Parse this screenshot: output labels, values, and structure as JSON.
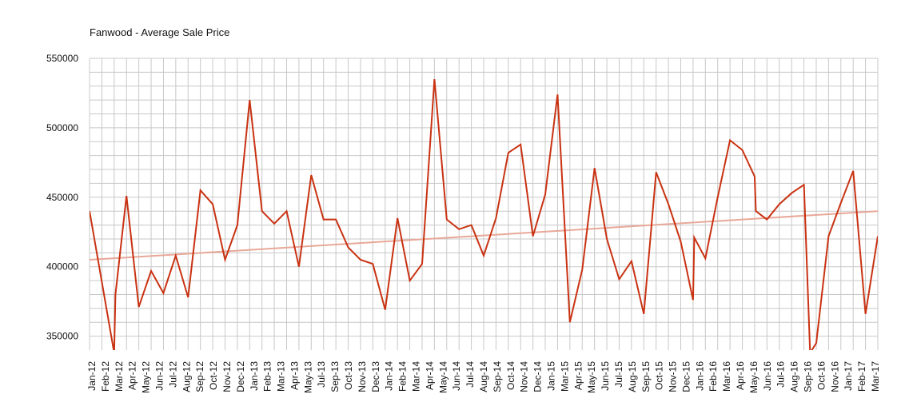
{
  "chart_data": {
    "type": "line",
    "title": "Fanwood - Average Sale Price",
    "xlabel": "",
    "ylabel": "",
    "ylim": [
      340000,
      550000
    ],
    "y_ticks": [
      550000,
      500000,
      450000,
      400000,
      350000
    ],
    "y_tick_labels": [
      "550000",
      "500000",
      "450000",
      "400000",
      "350000"
    ],
    "grid": true,
    "legend": "none",
    "x_tick_labels": [
      "Jan-12",
      "Feb-12",
      "Mar-12",
      "Apr-12",
      "May-12",
      "Jun-12",
      "Jul-12",
      "Aug-12",
      "Sep-12",
      "Oct-12",
      "Nov-12",
      "Dec-12",
      "Jan-13",
      "Feb-13",
      "Mar-13",
      "Apr-13",
      "May-13",
      "Jul-13",
      "Sep-13",
      "Oct-13",
      "Nov-13",
      "Dec-13",
      "Jan-14",
      "Feb-14",
      "Mar-14",
      "Apr-14",
      "May-14",
      "Jun-14",
      "Jul-14",
      "Aug-14",
      "Sep-14",
      "Oct-14",
      "Nov-14",
      "Dec-14",
      "Jan-15",
      "Mar-15",
      "Apr-15",
      "May-15",
      "Jun-15",
      "Jul-15",
      "Aug-15",
      "Sep-15",
      "Oct-15",
      "Nov-15",
      "Dec-15",
      "Jan-16",
      "Feb-16",
      "Mar-16",
      "Apr-16",
      "May-16",
      "Jun-16",
      "Jul-16",
      "Aug-16",
      "Sep-16",
      "Oct-16",
      "Nov-16",
      "Jan-17",
      "Feb-17",
      "Mar-17"
    ],
    "series": [
      {
        "values": [
          [
            0.0,
            440000
          ],
          [
            2.0,
            338000
          ],
          [
            2.1,
            380000
          ],
          [
            3.0,
            451000
          ],
          [
            4.0,
            371000
          ],
          [
            5.0,
            397000
          ],
          [
            6.0,
            381000
          ],
          [
            7.0,
            408000
          ],
          [
            8.0,
            378000
          ],
          [
            9.0,
            455000
          ],
          [
            10.0,
            445000
          ],
          [
            11.0,
            405000
          ],
          [
            12.0,
            430000
          ],
          [
            13.0,
            520000
          ],
          [
            14.0,
            440000
          ],
          [
            15.0,
            431000
          ],
          [
            16.0,
            440000
          ],
          [
            17.0,
            400000
          ],
          [
            18.0,
            466000
          ],
          [
            19.0,
            434000
          ],
          [
            20.0,
            434000
          ],
          [
            21.0,
            414000
          ],
          [
            22.0,
            405000
          ],
          [
            23.0,
            402000
          ],
          [
            24.0,
            369000
          ],
          [
            25.0,
            435000
          ],
          [
            26.0,
            390000
          ],
          [
            27.0,
            402000
          ],
          [
            28.0,
            535000
          ],
          [
            29.0,
            434000
          ],
          [
            30.0,
            427000
          ],
          [
            31.0,
            430000
          ],
          [
            32.0,
            408000
          ],
          [
            33.0,
            435000
          ],
          [
            34.0,
            482000
          ],
          [
            35.0,
            488000
          ],
          [
            36.0,
            422000
          ],
          [
            37.0,
            452000
          ],
          [
            38.0,
            524000
          ],
          [
            39.0,
            360000
          ],
          [
            40.0,
            398000
          ],
          [
            41.0,
            471000
          ],
          [
            42.0,
            420000
          ],
          [
            43.0,
            391000
          ],
          [
            44.0,
            404000
          ],
          [
            45.0,
            366000
          ],
          [
            46.0,
            468000
          ],
          [
            47.0,
            445000
          ],
          [
            48.0,
            418000
          ],
          [
            49.0,
            376000
          ],
          [
            49.1,
            421000
          ],
          [
            50.0,
            406000
          ],
          [
            51.0,
            450000
          ],
          [
            52.0,
            491000
          ],
          [
            53.0,
            484000
          ],
          [
            54.0,
            465000
          ],
          [
            54.1,
            440000
          ],
          [
            55.0,
            434000
          ],
          [
            56.0,
            445000
          ],
          [
            57.0,
            453000
          ],
          [
            58.0,
            459000
          ],
          [
            58.5,
            338000
          ],
          [
            59.0,
            345000
          ],
          [
            60.0,
            422000
          ],
          [
            61.0,
            446000
          ],
          [
            62.0,
            469000
          ],
          [
            63.0,
            366000
          ],
          [
            64.0,
            422000
          ]
        ]
      }
    ],
    "trendline": {
      "start": [
        0,
        405000
      ],
      "end": [
        64,
        440000
      ]
    },
    "colors": {
      "line": "#c93212",
      "trend": "#e8a898",
      "grid": "#c8c8c8"
    }
  }
}
